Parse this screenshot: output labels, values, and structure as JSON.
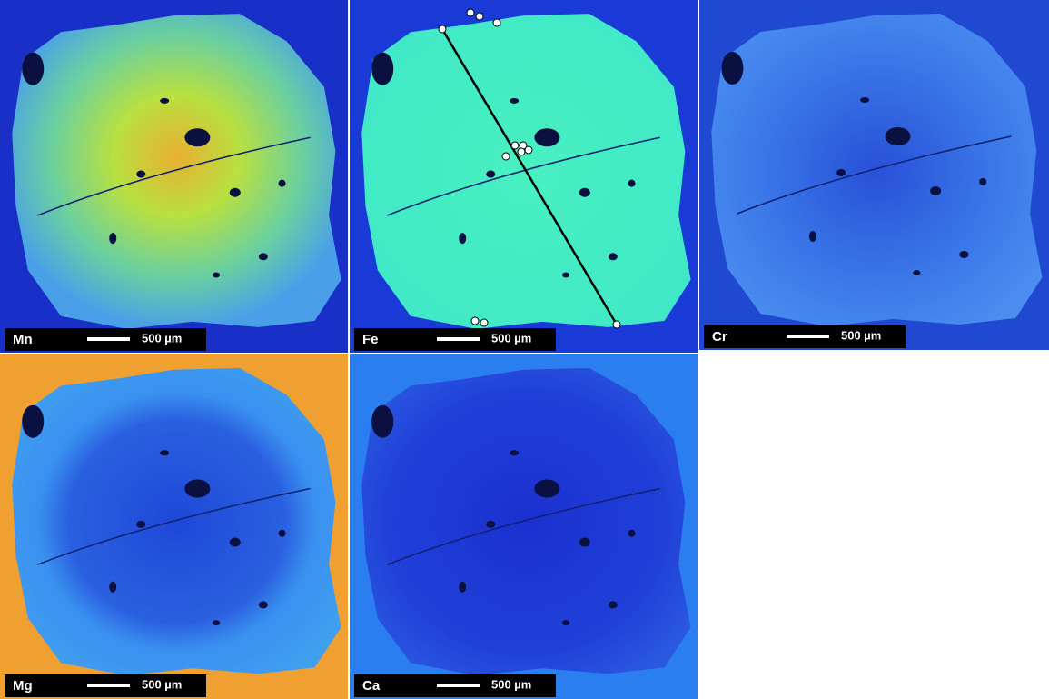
{
  "panels": [
    {
      "element": "Mn",
      "scale": "500 µm"
    },
    {
      "element": "Fe",
      "scale": "500 µm"
    },
    {
      "element": "Cr",
      "scale": "500 µm"
    },
    {
      "element": "Mg",
      "scale": "500 µm"
    },
    {
      "element": "Ca",
      "scale": "500 µm"
    }
  ]
}
